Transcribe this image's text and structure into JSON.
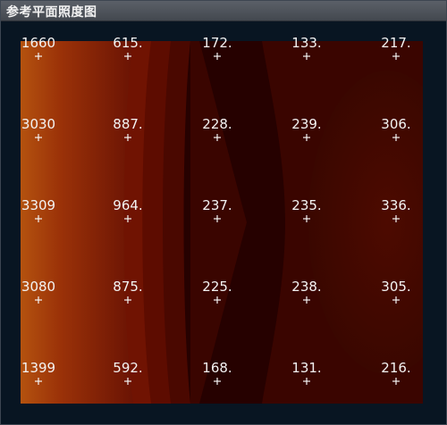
{
  "window": {
    "title": "参考平面照度图"
  },
  "chart_data": {
    "type": "heatmap",
    "title": "",
    "xlabel": "",
    "ylabel": "",
    "rows": 5,
    "cols": 5,
    "labels": [
      [
        "1660",
        "615.",
        "172.",
        "133.",
        "217."
      ],
      [
        "3030",
        "887.",
        "228.",
        "239.",
        "306."
      ],
      [
        "3309",
        "964.",
        "237.",
        "235.",
        "336."
      ],
      [
        "3080",
        "875.",
        "225.",
        "238.",
        "305."
      ],
      [
        "1399",
        "592.",
        "168.",
        "131.",
        "216."
      ]
    ],
    "values": [
      [
        1660,
        615,
        172,
        133,
        217
      ],
      [
        3030,
        887,
        228,
        239,
        306
      ],
      [
        3309,
        964,
        237,
        235,
        336
      ],
      [
        3080,
        875,
        225,
        238,
        305
      ],
      [
        1399,
        592,
        168,
        131,
        216
      ]
    ],
    "colors": {
      "background": "#081522",
      "low": "#220000",
      "mid": "#6b0f00",
      "high": "#c15a12",
      "label": "#f3f3f3"
    }
  }
}
